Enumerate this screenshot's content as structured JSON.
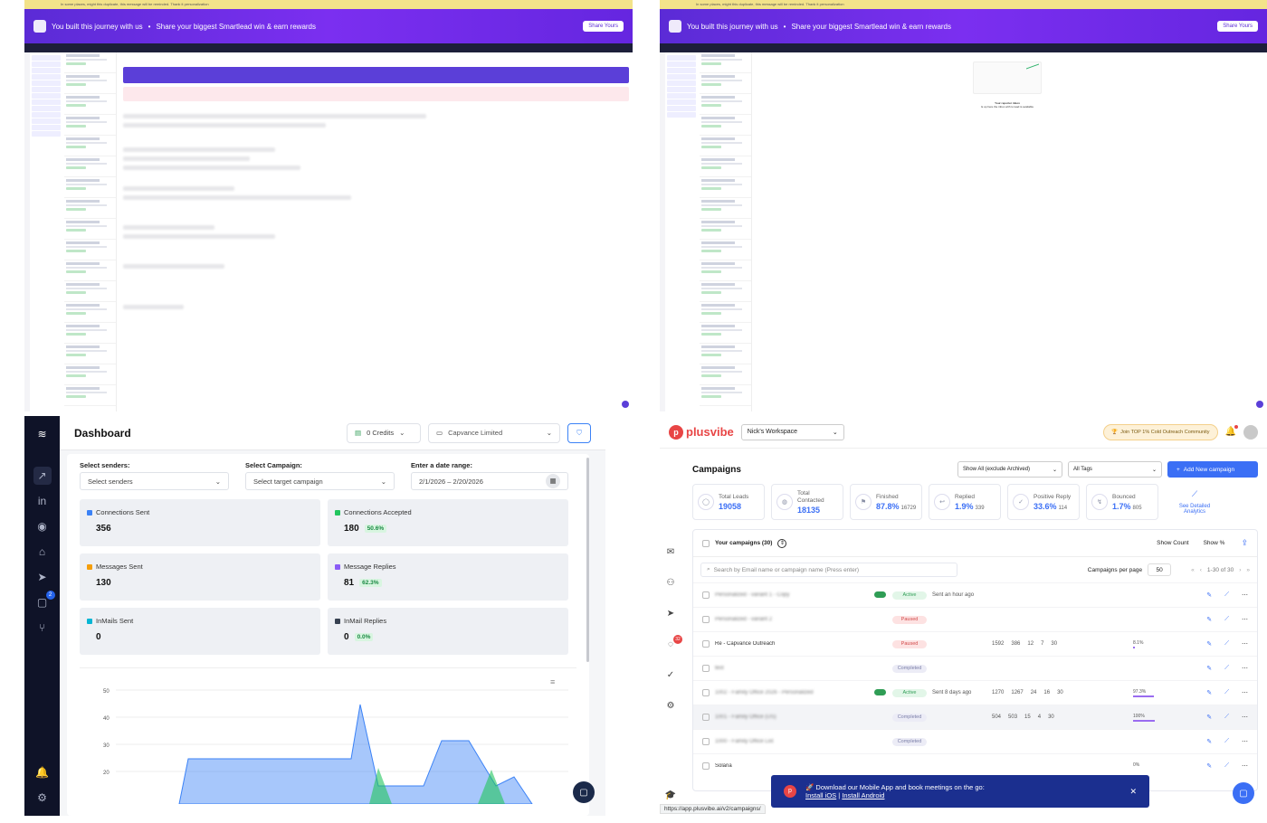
{
  "smartlead": {
    "banner_text": "You built this journey with us",
    "banner_sub": "Share your biggest Smartlead win & earn rewards",
    "banner_cta": "Share Yours",
    "top_warning": "In some places, might this duplicate, this message will be reminded. Thank it personalization",
    "empty_inbox_title": "Your reporter inbox",
    "empty_inbox_sub": "Is up here the inbox with to lead is available"
  },
  "linkedin_tool": {
    "title": "Dashboard",
    "credits": "0 Credits",
    "company": "Capvance Limited",
    "filters": {
      "senders_label": "Select senders:",
      "senders_placeholder": "Select senders",
      "campaign_label": "Select Campaign:",
      "campaign_placeholder": "Select target campaign",
      "date_label": "Enter a date range:",
      "date_value": "2/1/2026 – 2/20/2026"
    },
    "stats": [
      {
        "label": "Connections Sent",
        "value": "356",
        "pct": "",
        "color": "#3b82f6"
      },
      {
        "label": "Connections Accepted",
        "value": "180",
        "pct": "50.6%",
        "color": "#22c55e"
      },
      {
        "label": "Messages Sent",
        "value": "130",
        "pct": "",
        "color": "#f59e0b"
      },
      {
        "label": "Message Replies",
        "value": "81",
        "pct": "62.3%",
        "color": "#8b5cf6"
      },
      {
        "label": "InMails Sent",
        "value": "0",
        "pct": "",
        "color": "#06b6d4"
      },
      {
        "label": "InMail Replies",
        "value": "0",
        "pct": "0.0%",
        "color": "#374151"
      }
    ],
    "messages_badge": "2",
    "chart_yticks": [
      "50",
      "40",
      "30",
      "20"
    ]
  },
  "plusvibe": {
    "brand": "plusvibe",
    "workspace": "Nick's Workspace",
    "community": "Join TOP 1% Cold Outreach Community",
    "campaigns_title": "Campaigns",
    "filter_archive": "Show All (exclude Archived)",
    "filter_tags": "All Tags",
    "add_campaign": "Add New campaign",
    "metrics": [
      {
        "label": "Total Leads",
        "value": "19058",
        "sub": ""
      },
      {
        "label": "Total Contacted",
        "value": "18135",
        "sub": ""
      },
      {
        "label": "Finished",
        "value": "87.8%",
        "sub": "16729"
      },
      {
        "label": "Replied",
        "value": "1.9%",
        "sub": "339"
      },
      {
        "label": "Positive Reply",
        "value": "33.6%",
        "sub": "114"
      },
      {
        "label": "Bounced",
        "value": "1.7%",
        "sub": "805"
      }
    ],
    "analytics_link": "See Detailed Analytics",
    "your_campaigns": "Your campaigns (30)",
    "show_count": "Show Count",
    "show_pct": "Show %",
    "search_placeholder": "Search by Email name or campaign name (Press enter)",
    "per_page_label": "Campaigns per page",
    "per_page": "50",
    "pagination": "1-30 of 30",
    "chat_badge": "32",
    "rows": [
      {
        "name": "Personalized - variant 1 - Copy",
        "status": "Active",
        "sent": "Sent an hour ago",
        "leads": "",
        "contacted": "",
        "replies": "",
        "positive": "",
        "emails": "",
        "pct": ""
      },
      {
        "name": "Personalized - variant 2",
        "status": "Paused",
        "sent": "",
        "leads": "",
        "contacted": "",
        "replies": "",
        "positive": "",
        "emails": "",
        "pct": ""
      },
      {
        "name": "Re - Capvance Outreach",
        "status": "Paused",
        "sent": "",
        "leads": "1592",
        "contacted": "386",
        "replies": "12",
        "positive": "7",
        "emails": "30",
        "pct": "8.1%"
      },
      {
        "name": "test",
        "status": "Completed",
        "sent": "",
        "leads": "",
        "contacted": "",
        "replies": "",
        "positive": "",
        "emails": "",
        "pct": ""
      },
      {
        "name": "1002 - Family Office 2026 - Personalized",
        "status": "Active",
        "sent": "Sent 8 days ago",
        "leads": "1270",
        "contacted": "1267",
        "replies": "24",
        "positive": "16",
        "emails": "30",
        "pct": "97.3%"
      },
      {
        "name": "1001 - Family Office (US)",
        "status": "Completed",
        "sent": "",
        "leads": "504",
        "contacted": "503",
        "replies": "15",
        "positive": "4",
        "emails": "30",
        "pct": "100%"
      },
      {
        "name": "1000 - Family Office List",
        "status": "Completed",
        "sent": "",
        "leads": "",
        "contacted": "",
        "replies": "",
        "positive": "",
        "emails": "",
        "pct": ""
      },
      {
        "name": "Solana",
        "status": "",
        "sent": "",
        "leads": "",
        "contacted": "",
        "replies": "",
        "positive": "",
        "emails": "",
        "pct": "0%"
      }
    ],
    "popup_text": "🚀 Download our Mobile App and book meetings on the go:",
    "popup_ios": "Install iOS",
    "popup_sep": "|",
    "popup_android": "Install Android",
    "status_url": "https://app.plusvibe.ai/v2/campaigns/"
  }
}
